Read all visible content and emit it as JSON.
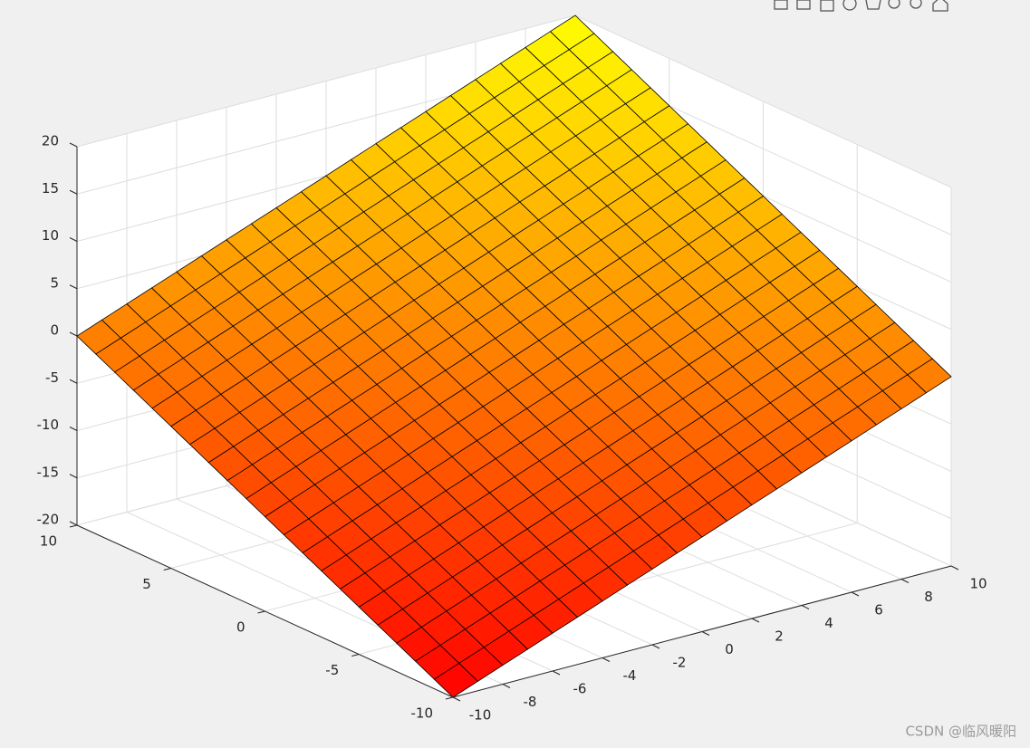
{
  "chart_data": {
    "type": "surface",
    "x": [
      -10,
      -9,
      -8,
      -7,
      -6,
      -5,
      -4,
      -3,
      -2,
      -1,
      0,
      1,
      2,
      3,
      4,
      5,
      6,
      7,
      8,
      9,
      10
    ],
    "y": [
      -10,
      -9,
      -8,
      -7,
      -6,
      -5,
      -4,
      -3,
      -2,
      -1,
      0,
      1,
      2,
      3,
      4,
      5,
      6,
      7,
      8,
      9,
      10
    ],
    "z": [
      [
        -20,
        -19,
        -18,
        -17,
        -16,
        -15,
        -14,
        -13,
        -12,
        -11,
        -10,
        -9,
        -8,
        -7,
        -6,
        -5,
        -4,
        -3,
        -2,
        -1,
        0
      ],
      [
        -19,
        -18,
        -17,
        -16,
        -15,
        -14,
        -13,
        -12,
        -11,
        -10,
        -9,
        -8,
        -7,
        -6,
        -5,
        -4,
        -3,
        -2,
        -1,
        0,
        1
      ],
      [
        -18,
        -17,
        -16,
        -15,
        -14,
        -13,
        -12,
        -11,
        -10,
        -9,
        -8,
        -7,
        -6,
        -5,
        -4,
        -3,
        -2,
        -1,
        0,
        1,
        2
      ],
      [
        -17,
        -16,
        -15,
        -14,
        -13,
        -12,
        -11,
        -10,
        -9,
        -8,
        -7,
        -6,
        -5,
        -4,
        -3,
        -2,
        -1,
        0,
        1,
        2,
        3
      ],
      [
        -16,
        -15,
        -14,
        -13,
        -12,
        -11,
        -10,
        -9,
        -8,
        -7,
        -6,
        -5,
        -4,
        -3,
        -2,
        -1,
        0,
        1,
        2,
        3,
        4
      ],
      [
        -15,
        -14,
        -13,
        -12,
        -11,
        -10,
        -9,
        -8,
        -7,
        -6,
        -5,
        -4,
        -3,
        -2,
        -1,
        0,
        1,
        2,
        3,
        4,
        5
      ],
      [
        -14,
        -13,
        -12,
        -11,
        -10,
        -9,
        -8,
        -7,
        -6,
        -5,
        -4,
        -3,
        -2,
        -1,
        0,
        1,
        2,
        3,
        4,
        5,
        6
      ],
      [
        -13,
        -12,
        -11,
        -10,
        -9,
        -8,
        -7,
        -6,
        -5,
        -4,
        -3,
        -2,
        -1,
        0,
        1,
        2,
        3,
        4,
        5,
        6,
        7
      ],
      [
        -12,
        -11,
        -10,
        -9,
        -8,
        -7,
        -6,
        -5,
        -4,
        -3,
        -2,
        -1,
        0,
        1,
        2,
        3,
        4,
        5,
        6,
        7,
        8
      ],
      [
        -11,
        -10,
        -9,
        -8,
        -7,
        -6,
        -5,
        -4,
        -3,
        -2,
        -1,
        0,
        1,
        2,
        3,
        4,
        5,
        6,
        7,
        8,
        9
      ],
      [
        -10,
        -9,
        -8,
        -7,
        -6,
        -5,
        -4,
        -3,
        -2,
        -1,
        0,
        1,
        2,
        3,
        4,
        5,
        6,
        7,
        8,
        9,
        10
      ],
      [
        -9,
        -8,
        -7,
        -6,
        -5,
        -4,
        -3,
        -2,
        -1,
        0,
        1,
        2,
        3,
        4,
        5,
        6,
        7,
        8,
        9,
        10,
        11
      ],
      [
        -8,
        -7,
        -6,
        -5,
        -4,
        -3,
        -2,
        -1,
        0,
        1,
        2,
        3,
        4,
        5,
        6,
        7,
        8,
        9,
        10,
        11,
        12
      ],
      [
        -7,
        -6,
        -5,
        -4,
        -3,
        -2,
        -1,
        0,
        1,
        2,
        3,
        4,
        5,
        6,
        7,
        8,
        9,
        10,
        11,
        12,
        13
      ],
      [
        -6,
        -5,
        -4,
        -3,
        -2,
        -1,
        0,
        1,
        2,
        3,
        4,
        5,
        6,
        7,
        8,
        9,
        10,
        11,
        12,
        13,
        14
      ],
      [
        -5,
        -4,
        -3,
        -2,
        -1,
        0,
        1,
        2,
        3,
        4,
        5,
        6,
        7,
        8,
        9,
        10,
        11,
        12,
        13,
        14,
        15
      ],
      [
        -4,
        -3,
        -2,
        -1,
        0,
        1,
        2,
        3,
        4,
        5,
        6,
        7,
        8,
        9,
        10,
        11,
        12,
        13,
        14,
        15,
        16
      ],
      [
        -3,
        -2,
        -1,
        0,
        1,
        2,
        3,
        4,
        5,
        6,
        7,
        8,
        9,
        10,
        11,
        12,
        13,
        14,
        15,
        16,
        17
      ],
      [
        -2,
        -1,
        0,
        1,
        2,
        3,
        4,
        5,
        6,
        7,
        8,
        9,
        10,
        11,
        12,
        13,
        14,
        15,
        16,
        17,
        18
      ],
      [
        -1,
        0,
        1,
        2,
        3,
        4,
        5,
        6,
        7,
        8,
        9,
        10,
        11,
        12,
        13,
        14,
        15,
        16,
        17,
        18,
        19
      ],
      [
        0,
        1,
        2,
        3,
        4,
        5,
        6,
        7,
        8,
        9,
        10,
        11,
        12,
        13,
        14,
        15,
        16,
        17,
        18,
        19,
        20
      ]
    ],
    "xlim": [
      -10,
      10
    ],
    "ylim": [
      -10,
      10
    ],
    "zlim": [
      -20,
      20
    ],
    "xticks": [
      -10,
      -8,
      -6,
      -4,
      -2,
      0,
      2,
      4,
      6,
      8,
      10
    ],
    "yticks": [
      -10,
      -5,
      0,
      5,
      10
    ],
    "zticks": [
      -20,
      -15,
      -10,
      -5,
      0,
      5,
      10,
      15,
      20
    ],
    "grid": true,
    "colormap": [
      "#ff0000",
      "#ffff00"
    ],
    "edge_color": "#000000"
  },
  "watermark": "CSDN @临风暖阳"
}
